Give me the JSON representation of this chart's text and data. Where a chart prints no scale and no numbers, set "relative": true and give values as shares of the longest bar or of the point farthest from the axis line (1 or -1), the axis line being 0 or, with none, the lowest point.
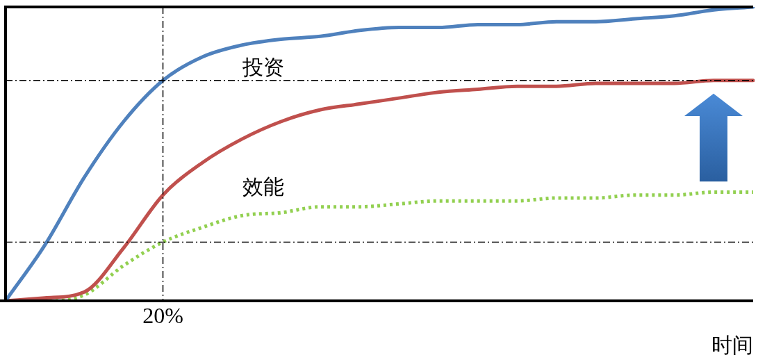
{
  "chart_data": {
    "type": "line",
    "relative": true,
    "xlabel": "时间",
    "legend": false,
    "grid": false,
    "marker": "none",
    "tick_labels": false,
    "categories": [
      null,
      null,
      null,
      null,
      null,
      null,
      null,
      null,
      null,
      null,
      null,
      null,
      null,
      null,
      null,
      null,
      null,
      null,
      null,
      null
    ],
    "annotations": [
      "20%"
    ],
    "series": [
      {
        "name": "投资",
        "color": "#4f81bd",
        "line_style": "solid",
        "values": [
          0,
          0.19,
          0.42,
          0.61,
          0.75,
          0.83,
          0.87,
          0.89,
          0.9,
          0.92,
          0.93,
          0.93,
          0.94,
          0.94,
          0.95,
          0.95,
          0.96,
          0.97,
          0.99,
          1
        ]
      },
      {
        "color": "#c0504d",
        "line_style": "solid",
        "values": [
          0,
          0.01,
          0.03,
          0.18,
          0.36,
          0.47,
          0.55,
          0.61,
          0.65,
          0.67,
          0.69,
          0.71,
          0.72,
          0.73,
          0.73,
          0.74,
          0.74,
          0.74,
          0.75,
          0.75
        ]
      },
      {
        "name": "效能",
        "color": "#92d050",
        "line_style": "dotted",
        "values": [
          0,
          0,
          0.02,
          0.12,
          0.2,
          0.25,
          0.29,
          0.3,
          0.32,
          0.32,
          0.33,
          0.34,
          0.34,
          0.34,
          0.35,
          0.35,
          0.36,
          0.36,
          0.37,
          0.37
        ]
      }
    ],
    "ref_lines": [
      {
        "axis": "y",
        "value": 0.75,
        "line_style": "dashed"
      },
      {
        "axis": "y",
        "value": 0.2,
        "line_style": "dashed"
      }
    ]
  }
}
